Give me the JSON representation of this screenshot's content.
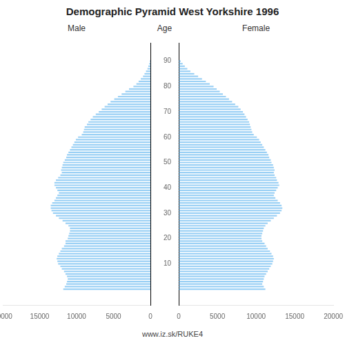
{
  "chart_data": {
    "type": "bar",
    "orientation": "horizontal",
    "title": "Demographic Pyramid West Yorkshire 1996",
    "footer": "www.iz.sk/RUKE4",
    "ylabel": "Age",
    "y": [
      0,
      1,
      2,
      3,
      4,
      5,
      6,
      7,
      8,
      9,
      10,
      11,
      12,
      13,
      14,
      15,
      16,
      17,
      18,
      19,
      20,
      21,
      22,
      23,
      24,
      25,
      26,
      27,
      28,
      29,
      30,
      31,
      32,
      33,
      34,
      35,
      36,
      37,
      38,
      39,
      40,
      41,
      42,
      43,
      44,
      45,
      46,
      47,
      48,
      49,
      50,
      51,
      52,
      53,
      54,
      55,
      56,
      57,
      58,
      59,
      60,
      61,
      62,
      63,
      64,
      65,
      66,
      67,
      68,
      69,
      70,
      71,
      72,
      73,
      74,
      75,
      76,
      77,
      78,
      79,
      80,
      81,
      82,
      83,
      84,
      85,
      86,
      87,
      88,
      89,
      90
    ],
    "series": [
      {
        "name": "Male",
        "values": [
          11800,
          11600,
          11400,
          11300,
          11200,
          11300,
          11500,
          11700,
          12000,
          12200,
          12500,
          12600,
          12700,
          12600,
          12400,
          12200,
          12000,
          11700,
          11500,
          11500,
          11200,
          11100,
          11000,
          10900,
          10900,
          11100,
          11500,
          11900,
          12400,
          12800,
          13200,
          13400,
          13500,
          13500,
          13300,
          13000,
          12800,
          12600,
          12400,
          12600,
          12800,
          13000,
          13000,
          12800,
          12500,
          12200,
          12000,
          12100,
          12000,
          11900,
          11800,
          11600,
          11400,
          11300,
          11100,
          10900,
          10700,
          10500,
          10300,
          10100,
          9800,
          9300,
          9100,
          9000,
          8900,
          8600,
          8400,
          8100,
          7800,
          7400,
          7000,
          6600,
          6200,
          5800,
          5400,
          4900,
          4400,
          3900,
          3400,
          2900,
          2300,
          1900,
          1600,
          1300,
          1000,
          800,
          600,
          400,
          280,
          160,
          80
        ]
      },
      {
        "name": "Female",
        "values": [
          11200,
          11000,
          10800,
          10900,
          11000,
          11100,
          11300,
          11500,
          11700,
          11900,
          12100,
          12200,
          12300,
          12200,
          12000,
          11800,
          11500,
          11300,
          11100,
          10800,
          10700,
          10700,
          10800,
          10900,
          11000,
          11200,
          11500,
          11900,
          12300,
          12700,
          13100,
          13300,
          13400,
          13300,
          13100,
          12800,
          12500,
          12300,
          12400,
          12600,
          12800,
          13000,
          12900,
          12700,
          12600,
          12400,
          12300,
          12400,
          12300,
          12200,
          12000,
          11900,
          11700,
          11600,
          11400,
          11200,
          11000,
          10800,
          10600,
          10400,
          10100,
          9700,
          9500,
          9400,
          9300,
          9200,
          9100,
          8900,
          8700,
          8500,
          8300,
          8000,
          7700,
          7300,
          6900,
          6500,
          6100,
          5700,
          5300,
          4900,
          4500,
          4000,
          3500,
          3000,
          2500,
          2000,
          1500,
          1100,
          780,
          500,
          250
        ]
      }
    ],
    "xlim": [
      0,
      20000
    ],
    "xticks": [
      0,
      5000,
      10000,
      15000,
      20000
    ],
    "ylim": [
      -0.5,
      91.5
    ],
    "yticks": [
      10,
      20,
      30,
      40,
      50,
      60,
      70,
      80,
      90
    ],
    "grid": false
  }
}
